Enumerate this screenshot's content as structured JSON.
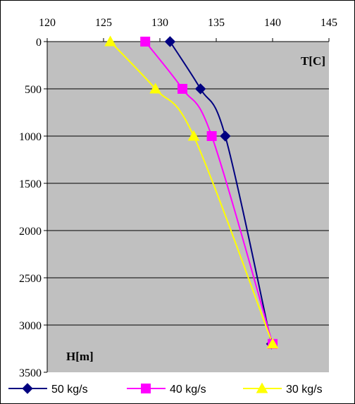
{
  "chart_data": {
    "type": "line",
    "x_axis": {
      "label": "T[C]",
      "position": "top",
      "min": 120,
      "max": 145,
      "ticks": [
        120,
        125,
        130,
        135,
        140,
        145
      ]
    },
    "y_axis": {
      "label": "H[m]",
      "inverted": true,
      "min": 0,
      "max": 3500,
      "ticks": [
        0,
        500,
        1000,
        1500,
        2000,
        2500,
        3000,
        3500
      ]
    },
    "grid": {
      "horizontal": true,
      "vertical": false
    },
    "plot_background": "#c0c0c0",
    "legend_position": "bottom",
    "series": [
      {
        "name": "50 kg/s",
        "color": "#000080",
        "marker": "diamond",
        "points": [
          {
            "x": 130.9,
            "y": 0
          },
          {
            "x": 133.6,
            "y": 500
          },
          {
            "x": 135.8,
            "y": 1000
          },
          {
            "x": 139.9,
            "y": 3200
          }
        ]
      },
      {
        "name": "40 kg/s",
        "color": "#ff00ff",
        "marker": "square",
        "points": [
          {
            "x": 128.7,
            "y": 0
          },
          {
            "x": 132.0,
            "y": 500
          },
          {
            "x": 134.6,
            "y": 1000
          },
          {
            "x": 140.0,
            "y": 3200
          }
        ]
      },
      {
        "name": "30 kg/s",
        "color": "#ffff00",
        "marker": "triangle",
        "points": [
          {
            "x": 125.6,
            "y": 0
          },
          {
            "x": 129.6,
            "y": 500
          },
          {
            "x": 133.0,
            "y": 1000
          },
          {
            "x": 140.0,
            "y": 3200
          }
        ]
      }
    ]
  }
}
